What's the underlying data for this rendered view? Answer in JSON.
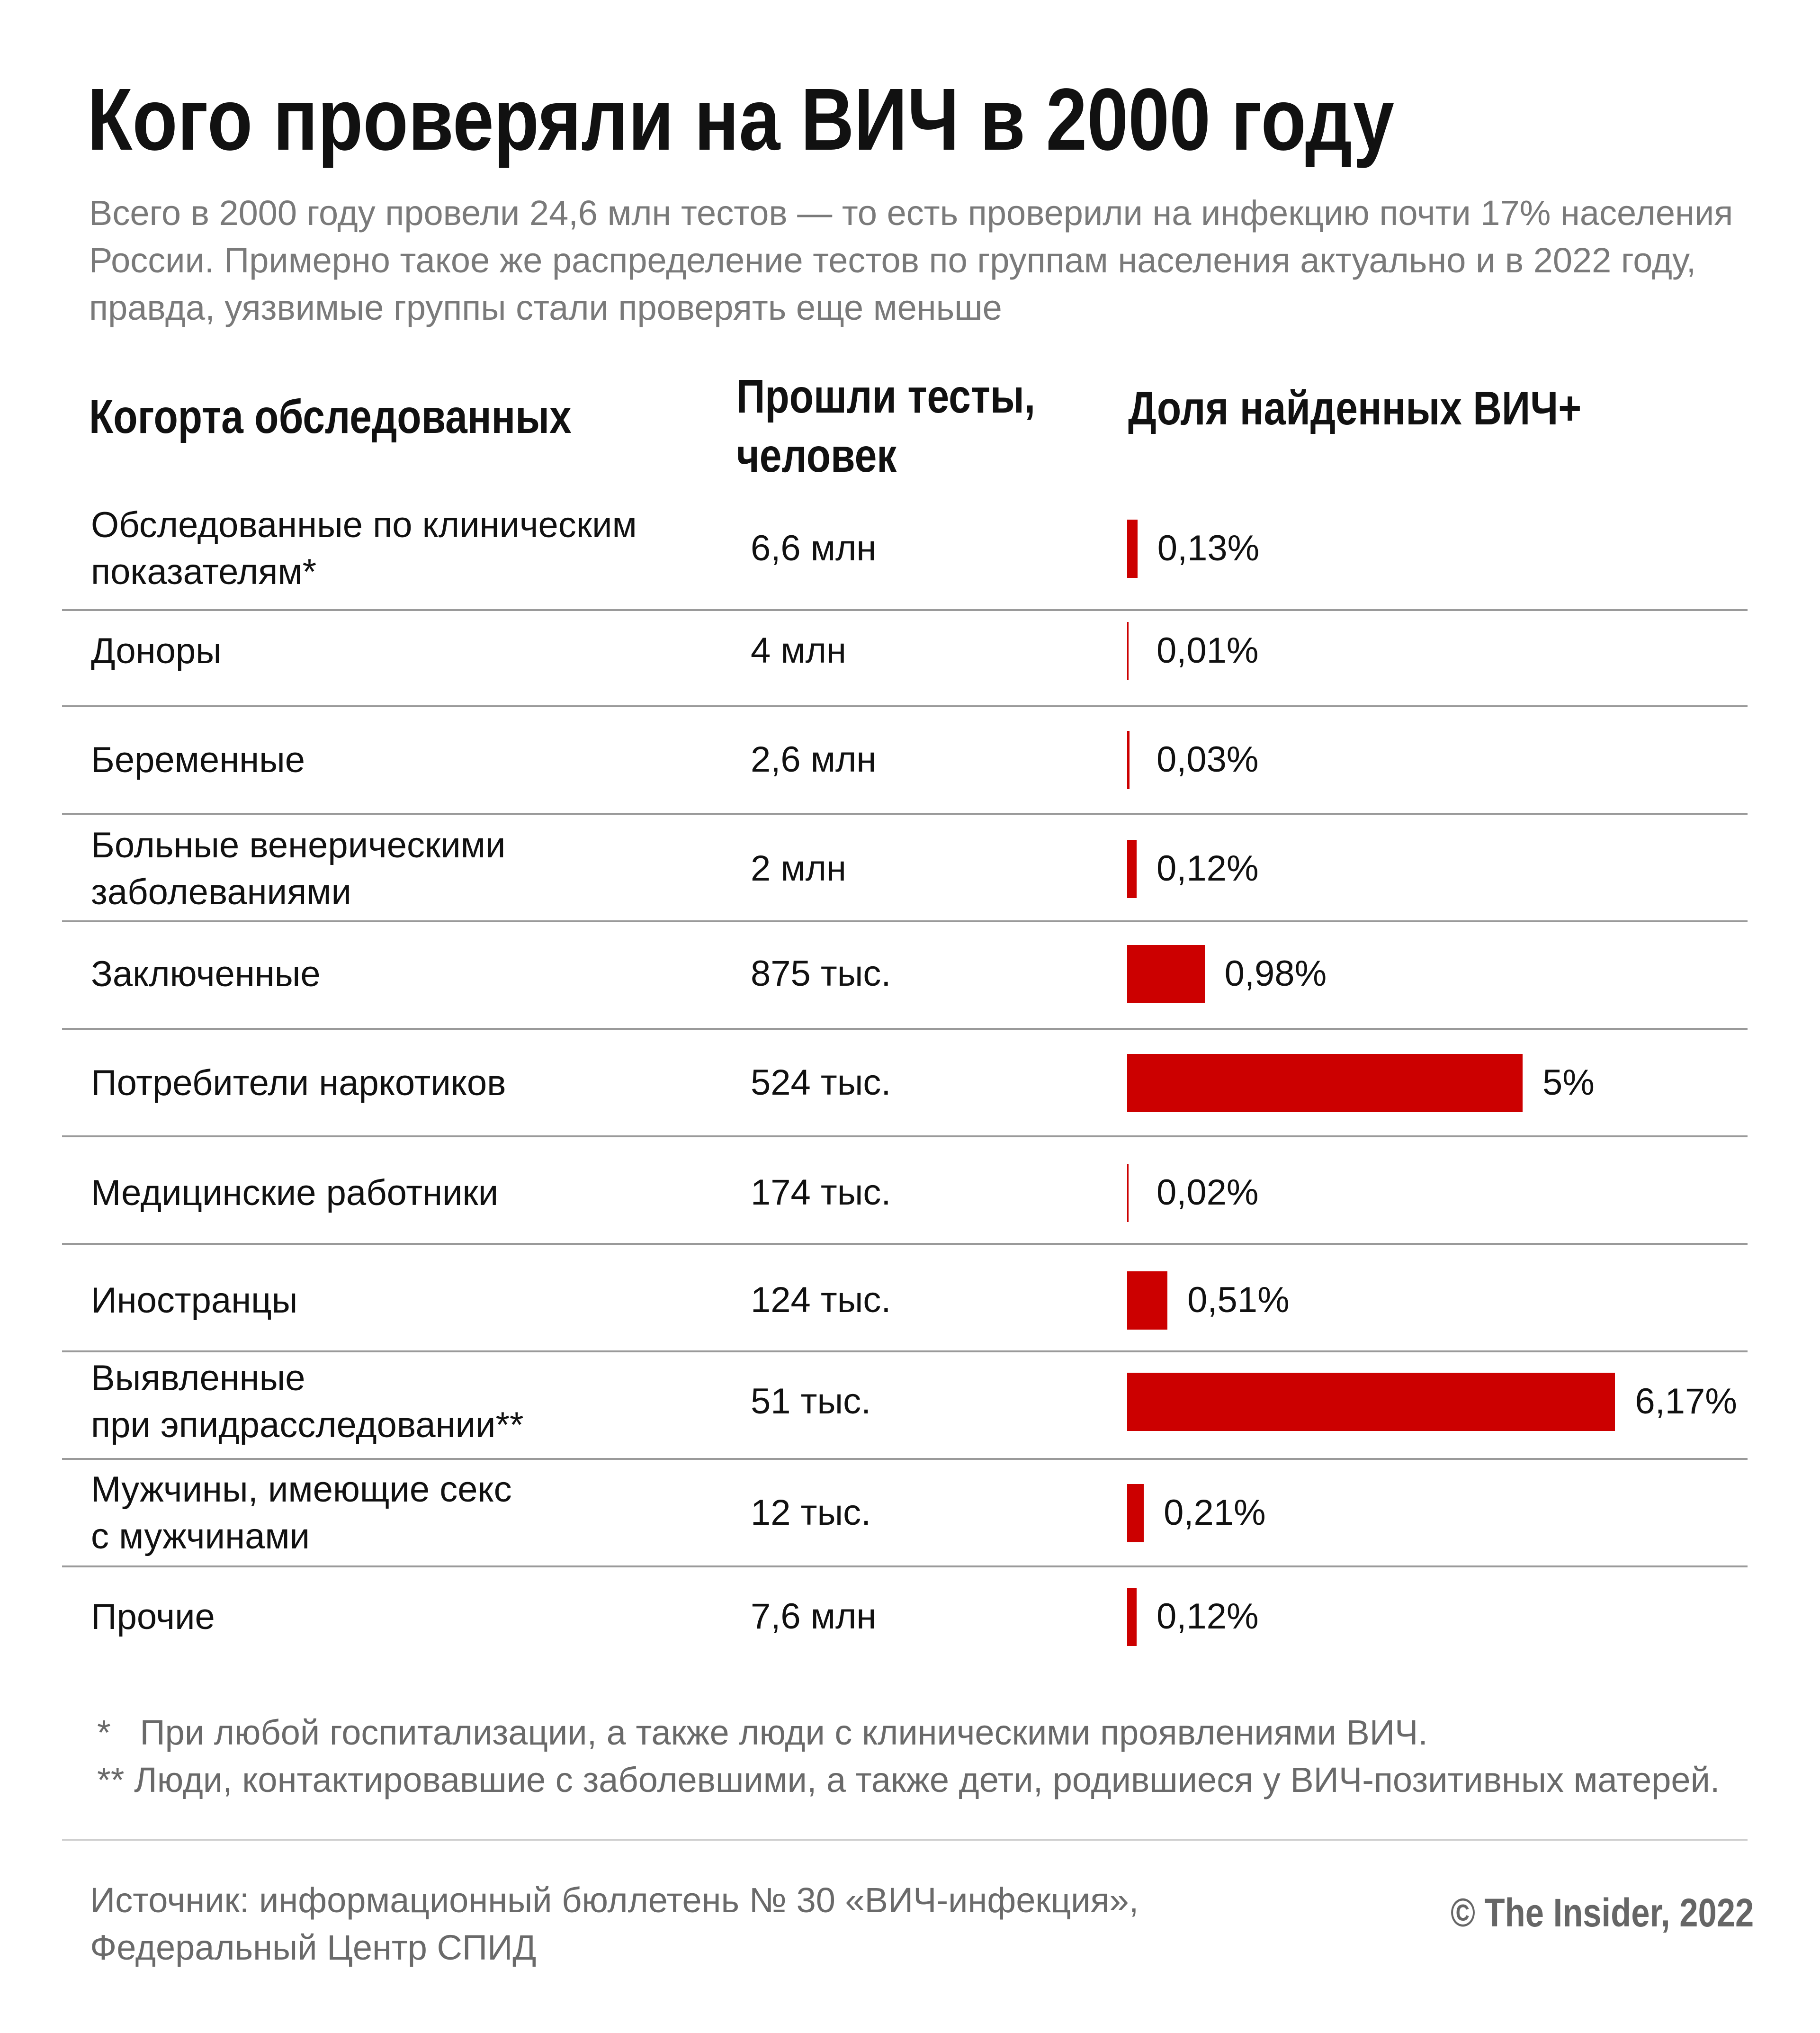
{
  "title": "Кого проверяли на ВИЧ в 2000 году",
  "subtitle": [
    "Всего в 2000 году провели 24,6 млн тестов — то есть проверили на инфекцию почти 17% населения",
    "России. Примерно такое же распределение тестов по группам населения актуально и в 2022 году,",
    "правда, уязвимые группы стали проверять еще меньше"
  ],
  "headers": {
    "cohort": "Когорта обследованных",
    "tested_line1": "Прошли тесты,",
    "tested_line2": "человек",
    "share": "Доля найденных ВИЧ+"
  },
  "chart_data": {
    "type": "bar",
    "orientation": "horizontal",
    "bar_color": "#cc0000",
    "categories": [
      "Обследованные по клиническим показателям*",
      "Доноры",
      "Беременные",
      "Больные венерическими заболеваниями",
      "Заключенные",
      "Потребители наркотиков",
      "Медицинские работники",
      "Иностранцы",
      "Выявленные при эпидрасследовании**",
      "Мужчины, имеющие секс с мужчинами",
      "Прочие"
    ],
    "category_lines": [
      [
        "Обследованные по клиническим",
        "показателям*"
      ],
      [
        "Доноры"
      ],
      [
        "Беременные"
      ],
      [
        "Больные венерическими",
        "заболеваниями"
      ],
      [
        "Заключенные"
      ],
      [
        "Потребители наркотиков"
      ],
      [
        "Медицинские работники"
      ],
      [
        "Иностранцы"
      ],
      [
        "Выявленные",
        "при эпидрасследовании**"
      ],
      [
        "Мужчины, имеющие секс",
        "с мужчинами"
      ],
      [
        "Прочие"
      ]
    ],
    "tested": [
      "6,6 млн",
      "4 млн",
      "2,6 млн",
      "2 млн",
      "875 тыс.",
      "524 тыс.",
      "174 тыс.",
      "124 тыс.",
      "51 тыс.",
      "12 тыс.",
      "7,6 млн"
    ],
    "values": [
      0.13,
      0.01,
      0.03,
      0.12,
      0.98,
      5,
      0.02,
      0.51,
      6.17,
      0.21,
      0.12
    ],
    "labels": [
      "0,13%",
      "0,01%",
      "0,03%",
      "0,12%",
      "0,98%",
      "5%",
      "0,02%",
      "0,51%",
      "6,17%",
      "0,21%",
      "0,12%"
    ],
    "unit": "%"
  },
  "footnotes": [
    "*   При любой госпитализации, а также люди с клиническими проявлениями ВИЧ.",
    "** Люди, контактировавшие с заболевшими, а также дети, родившиеся у ВИЧ-позитивных матерей."
  ],
  "source": [
    "Источник: информационный бюллетень № 30 «ВИЧ-инфекция»,",
    "Федеральный Центр СПИД"
  ],
  "copyright": "© The Insider, 2022"
}
